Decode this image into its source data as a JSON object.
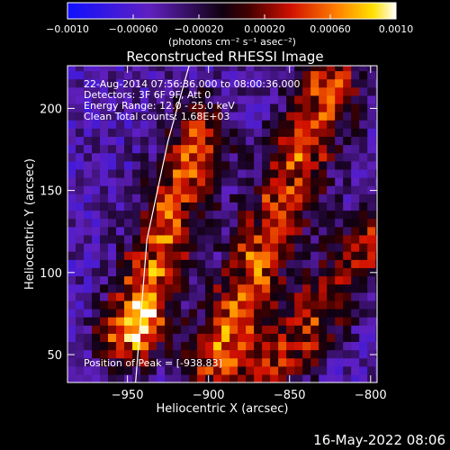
{
  "colorbar": {
    "ticks": [
      "−0.0010",
      "−0.00060",
      "−0.00020",
      "0.00020",
      "0.00060",
      "0.0010"
    ],
    "tick_values": [
      -0.001,
      -0.0006,
      -0.0002,
      0.0002,
      0.0006,
      0.001
    ],
    "range": [
      -0.001,
      0.001
    ],
    "units": "(photons cm⁻² s⁻¹ asec⁻²)"
  },
  "overlay": {
    "time": "22-Aug-2014 07:56:36.000 to 08:00:36.000",
    "detectors": "Detectors: 3F 6F 9F, Att 0",
    "energy": "Energy Range: 12.0 - 25.0 keV",
    "clean": "Clean     Total counts: 1.68E+03",
    "peak": "Position of Peak = [-938.83]"
  },
  "footer": {
    "date": "16-May-2022 08:06"
  },
  "chart_data": {
    "type": "heatmap",
    "title": "Reconstructed RHESSI Image",
    "xlabel": "Heliocentric X (arcsec)",
    "ylabel": "Heliocentric Y (arcsec)",
    "xlim": [
      -987,
      -796
    ],
    "ylim": [
      33,
      226
    ],
    "xticks": [
      -950,
      -900,
      -850,
      -800
    ],
    "xtick_labels": [
      "−950",
      "−900",
      "−850",
      "−800"
    ],
    "yticks": [
      50,
      100,
      150,
      200
    ],
    "ytick_labels": [
      "50",
      "100",
      "150",
      "200"
    ],
    "colormap": "blue-purple-black-red-orange-yellow-white",
    "features": [
      {
        "type": "bright_ridge",
        "from": [
          -950,
          60
        ],
        "to": [
          -905,
          185
        ],
        "value": 0.0009
      },
      {
        "type": "bright_ridge",
        "from": [
          -895,
          45
        ],
        "to": [
          -825,
          215
        ],
        "value": 0.0009
      },
      {
        "type": "bright_ridge",
        "from": [
          -860,
          40
        ],
        "to": [
          -800,
          120
        ],
        "value": 0.0007
      },
      {
        "type": "peak",
        "x": -938.83,
        "y": 70,
        "value": 0.001
      }
    ],
    "limb_curve": [
      [
        -945,
        33
      ],
      [
        -938,
        120
      ],
      [
        -925,
        180
      ],
      [
        -912,
        226
      ]
    ]
  }
}
